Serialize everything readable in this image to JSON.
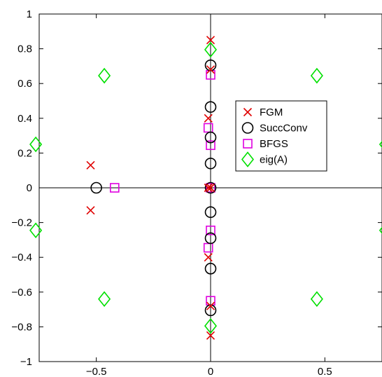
{
  "chart_data": {
    "type": "scatter",
    "title": "",
    "xlabel": "",
    "ylabel": "",
    "xlim": [
      -0.75,
      0.75
    ],
    "ylim": [
      -1,
      1
    ],
    "xticks": [
      {
        "value": -0.5,
        "label": "−0.5"
      },
      {
        "value": 0,
        "label": "0"
      },
      {
        "value": 0.5,
        "label": "0.5"
      }
    ],
    "yticks": [
      {
        "value": 1,
        "label": "1"
      },
      {
        "value": 0.8,
        "label": "0.8"
      },
      {
        "value": 0.6,
        "label": "0.6"
      },
      {
        "value": 0.4,
        "label": "0.4"
      },
      {
        "value": 0.2,
        "label": "0.2"
      },
      {
        "value": 0,
        "label": "0"
      },
      {
        "value": -0.2,
        "label": "−0.2"
      },
      {
        "value": -0.4,
        "label": "−0.4"
      },
      {
        "value": -0.6,
        "label": "−0.6"
      },
      {
        "value": -0.8,
        "label": "−0.8"
      },
      {
        "value": -1,
        "label": "−1"
      }
    ],
    "grid": false,
    "zero_axes": true,
    "legend_position": "right",
    "series": [
      {
        "name": "FGM",
        "marker": "x",
        "color": "#e00000",
        "points": [
          [
            0.0,
            0.85
          ],
          [
            0.0,
            0.68
          ],
          [
            -0.01,
            0.4
          ],
          [
            -0.525,
            0.13
          ],
          [
            -0.525,
            -0.13
          ],
          [
            -0.01,
            0.0
          ],
          [
            0.0,
            0.0
          ],
          [
            -0.01,
            -0.4
          ],
          [
            0.0,
            -0.68
          ],
          [
            0.0,
            -0.85
          ]
        ]
      },
      {
        "name": "SuccConv",
        "marker": "circle",
        "color": "#000000",
        "points": [
          [
            0.0,
            0.705
          ],
          [
            0.0,
            0.465
          ],
          [
            0.0,
            0.29
          ],
          [
            0.0,
            0.14
          ],
          [
            0.0,
            0.0
          ],
          [
            -0.5,
            0.0
          ],
          [
            0.0,
            -0.14
          ],
          [
            0.0,
            -0.29
          ],
          [
            0.0,
            -0.465
          ],
          [
            0.0,
            -0.705
          ]
        ]
      },
      {
        "name": "BFGS",
        "marker": "square",
        "color": "#e000e0",
        "points": [
          [
            0.0,
            0.65
          ],
          [
            -0.01,
            0.345
          ],
          [
            0.0,
            0.245
          ],
          [
            0.0,
            0.0
          ],
          [
            -0.42,
            0.0
          ],
          [
            0.0,
            -0.245
          ],
          [
            -0.01,
            -0.345
          ],
          [
            0.0,
            -0.65
          ]
        ]
      },
      {
        "name": "eig(A)",
        "marker": "diamond",
        "color": "#00e000",
        "points": [
          [
            0.0,
            0.795
          ],
          [
            -0.465,
            0.645
          ],
          [
            0.465,
            0.645
          ],
          [
            -0.765,
            0.25
          ],
          [
            0.765,
            0.25
          ],
          [
            -0.765,
            -0.245
          ],
          [
            0.765,
            -0.245
          ],
          [
            -0.465,
            -0.64
          ],
          [
            0.465,
            -0.64
          ],
          [
            0.0,
            -0.795
          ]
        ]
      }
    ]
  }
}
